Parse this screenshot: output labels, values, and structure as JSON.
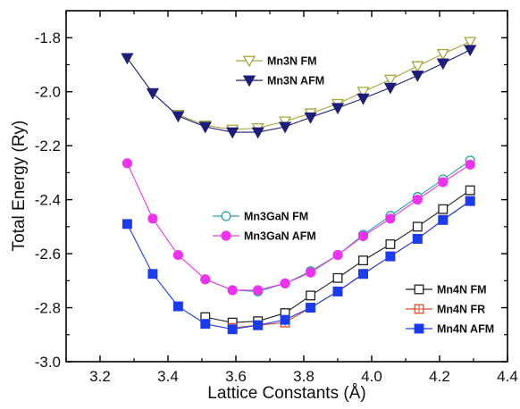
{
  "chart_data": {
    "type": "line",
    "xlabel": "Lattice Constants (Å)",
    "ylabel": "Total Energy (Ry)",
    "xlim": [
      3.1,
      4.4
    ],
    "ylim": [
      -3.0,
      -1.7
    ],
    "xticks": [
      3.2,
      3.4,
      3.6,
      3.8,
      4.0,
      4.2,
      4.4
    ],
    "yticks": [
      -3.0,
      -2.8,
      -2.6,
      -2.4,
      -2.2,
      -2.0,
      -1.8
    ],
    "xtick_labels": [
      "3.2",
      "3.4",
      "3.6",
      "3.8",
      "4.0",
      "4.2",
      "4.4"
    ],
    "ytick_labels": [
      "-3.0",
      "-2.8",
      "-2.6",
      "-2.4",
      "-2.2",
      "-2.0",
      "-1.8"
    ],
    "grid": false,
    "x": [
      3.28,
      3.355,
      3.43,
      3.51,
      3.59,
      3.665,
      3.745,
      3.82,
      3.9,
      3.975,
      4.055,
      4.135,
      4.21,
      4.29
    ],
    "series": [
      {
        "name": "Mn3N FM",
        "color": "#a8a63a",
        "marker": "triangle-down-open",
        "values": [
          null,
          null,
          -2.085,
          -2.125,
          -2.14,
          -2.135,
          -2.11,
          -2.08,
          -2.045,
          -2.0,
          -1.955,
          -1.905,
          -1.86,
          -1.815
        ]
      },
      {
        "name": "Mn3N AFM",
        "color": "#1e1e7a",
        "marker": "triangle-down-filled",
        "values": [
          -1.875,
          -2.005,
          -2.09,
          -2.13,
          -2.15,
          -2.15,
          -2.13,
          -2.095,
          -2.06,
          -2.025,
          -1.985,
          -1.94,
          -1.895,
          -1.845
        ]
      },
      {
        "name": "Mn3GaN FM",
        "color": "#2aa0a0",
        "marker": "circle-open",
        "values": [
          null,
          null,
          null,
          -2.695,
          -2.735,
          -2.74,
          -2.71,
          -2.665,
          -2.605,
          -2.53,
          -2.46,
          -2.39,
          -2.325,
          -2.255
        ]
      },
      {
        "name": "Mn3GaN AFM",
        "color": "#ee33ee",
        "marker": "circle-filled",
        "values": [
          -2.265,
          -2.47,
          -2.605,
          -2.695,
          -2.735,
          -2.735,
          -2.71,
          -2.67,
          -2.605,
          -2.535,
          -2.47,
          -2.4,
          -2.335,
          -2.27
        ]
      },
      {
        "name": "Mn4N FM",
        "color": "#222222",
        "marker": "square-open",
        "values": [
          null,
          null,
          null,
          -2.835,
          -2.855,
          -2.85,
          -2.82,
          -2.755,
          -2.69,
          -2.625,
          -2.565,
          -2.5,
          -2.435,
          -2.365
        ]
      },
      {
        "name": "Mn4N FR",
        "color": "#e04a2a",
        "marker": "square-open-cross",
        "values": [
          null,
          null,
          null,
          null,
          -2.875,
          -2.865,
          -2.855,
          -2.8,
          -2.74,
          -2.675,
          -2.61,
          -2.545,
          -2.475,
          -2.405
        ]
      },
      {
        "name": "Mn4N AFM",
        "color": "#1a3cee",
        "marker": "square-filled",
        "values": [
          -2.49,
          -2.675,
          -2.795,
          -2.86,
          -2.88,
          -2.865,
          -2.845,
          -2.8,
          -2.74,
          -2.675,
          -2.61,
          -2.545,
          -2.475,
          -2.405
        ]
      }
    ],
    "legends": [
      {
        "position": "top-center",
        "entries": [
          "Mn3N FM",
          "Mn3N AFM"
        ]
      },
      {
        "position": "center-left",
        "entries": [
          "Mn3GaN FM",
          "Mn3GaN AFM"
        ]
      },
      {
        "position": "bottom-right",
        "entries": [
          "Mn4N FM",
          "Mn4N FR",
          "Mn4N AFM"
        ]
      }
    ]
  }
}
